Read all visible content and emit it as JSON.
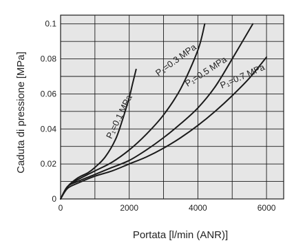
{
  "chart_data": {
    "type": "line",
    "title": "",
    "xlabel": "Portata [l/min (ANR)]",
    "ylabel": "Caduta di pressione [MPa]",
    "xlim": [
      0,
      6500
    ],
    "ylim": [
      0,
      0.105
    ],
    "xticks": [
      0,
      2000,
      4000,
      6000
    ],
    "xtick_labels": [
      "0",
      "2000",
      "4000",
      "6000"
    ],
    "yticks": [
      0,
      0.02,
      0.04,
      0.06,
      0.08,
      0.1
    ],
    "ytick_labels": [
      "0",
      "0.02",
      "0.04",
      "0.06",
      "0.08",
      "0.1"
    ],
    "x_grid": [
      1000,
      2000,
      3000,
      4000,
      5000,
      6000
    ],
    "y_grid": [
      0.01,
      0.02,
      0.03,
      0.04,
      0.05,
      0.06,
      0.07,
      0.08,
      0.09,
      0.1
    ],
    "grid": true,
    "background_color": "#e6e6e6",
    "line_color": "#1a1a1a",
    "series": [
      {
        "name": "P1=0.1 MPa",
        "label": "P₁=0.1 MPa",
        "x": [
          0,
          200,
          500,
          800,
          1000,
          1300,
          1600,
          1800,
          2000,
          2100,
          2200
        ],
        "y": [
          0,
          0.007,
          0.012,
          0.015,
          0.018,
          0.024,
          0.034,
          0.045,
          0.058,
          0.066,
          0.074
        ]
      },
      {
        "name": "P1=0.3 MPa",
        "label": "P₁=0.3 MPa",
        "x": [
          0,
          200,
          500,
          1000,
          1500,
          2000,
          2500,
          3000,
          3500,
          4000,
          4200
        ],
        "y": [
          0,
          0.007,
          0.011,
          0.016,
          0.021,
          0.028,
          0.037,
          0.048,
          0.063,
          0.085,
          0.1
        ]
      },
      {
        "name": "P1=0.5 MPa",
        "label": "P₁=0.5 MPa",
        "x": [
          0,
          200,
          500,
          1000,
          1500,
          2000,
          2500,
          3000,
          3500,
          4000,
          4500,
          5000,
          5600
        ],
        "y": [
          0,
          0.007,
          0.01,
          0.014,
          0.018,
          0.022,
          0.028,
          0.035,
          0.043,
          0.052,
          0.064,
          0.08,
          0.1
        ]
      },
      {
        "name": "P1=0.7 MPa",
        "label": "P₁=0.7 MPa",
        "x": [
          0,
          200,
          500,
          1000,
          1500,
          2000,
          2500,
          3000,
          3500,
          4000,
          4500,
          5000,
          5500,
          6000
        ],
        "y": [
          0,
          0.006,
          0.009,
          0.013,
          0.016,
          0.02,
          0.024,
          0.029,
          0.035,
          0.042,
          0.05,
          0.059,
          0.069,
          0.081
        ]
      }
    ]
  }
}
